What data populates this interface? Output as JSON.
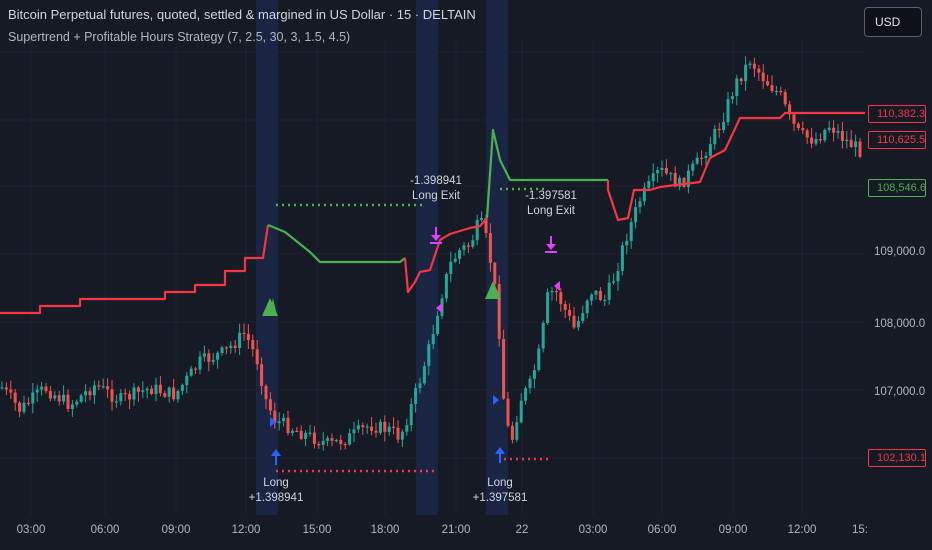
{
  "header": {
    "title": "Bitcoin Perpetual futures, quoted, settled & margined in US Dollar · 15 · DELTAIN",
    "strategy": "Supertrend + Profitable Hours Strategy (7, 2.5, 30, 3, 1.5, 4.5)"
  },
  "currency_button": {
    "label": "USD"
  },
  "price_axis": {
    "ticks": [
      "107,000.0",
      "108,000.0",
      "109,000.0"
    ]
  },
  "badges": [
    {
      "label": "110,382.3",
      "color": "#f23645"
    },
    {
      "label": "110,625.5",
      "color": "#f23645"
    },
    {
      "label": "108,546.6",
      "color": "#4caf50"
    },
    {
      "label": "102,130.1",
      "color": "#f23645"
    }
  ],
  "time_axis": {
    "ticks": [
      "03:00",
      "06:00",
      "09:00",
      "12:00",
      "15:00",
      "18:00",
      "21:00",
      "22",
      "03:00",
      "06:00",
      "09:00",
      "12:00",
      "15:"
    ]
  },
  "trades": [
    {
      "entry_label": "Long",
      "entry_value": "+1.398941",
      "exit_value": "-1.398941",
      "exit_label": "Long Exit"
    },
    {
      "entry_label": "Long",
      "entry_value": "+1.397581",
      "exit_value": "-1.397581",
      "exit_label": "Long Exit"
    }
  ],
  "colors": {
    "background": "#161a25",
    "up": "#26a69a",
    "down": "#ef5350",
    "supertrend_down": "#f23645",
    "supertrend_up": "#4caf50",
    "signal": "#e040fb",
    "entry_arrow": "#2962ff"
  }
}
